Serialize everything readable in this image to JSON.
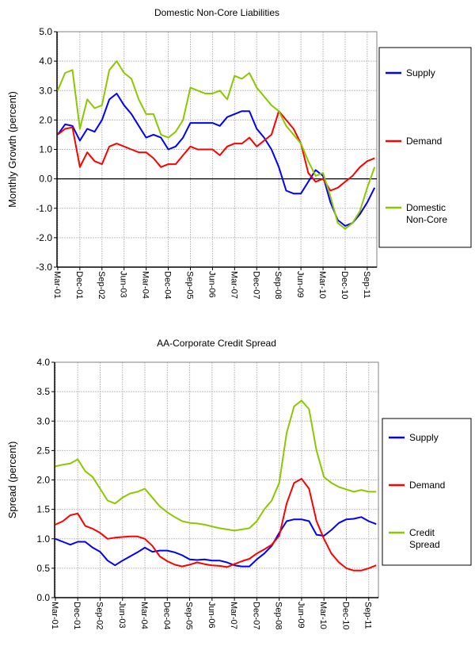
{
  "chart_data": [
    {
      "type": "line",
      "title": "Domestic Non-Core Liabilities",
      "xlabel": "",
      "ylabel": "Monthly Growth (percent)",
      "ylim": [
        -3.0,
        5.0
      ],
      "yticks": [
        "5.0",
        "4.0",
        "3.0",
        "2.0",
        "1.0",
        "0.0",
        "-1.0",
        "-2.0",
        "-3.0"
      ],
      "xticks": [
        "Mar-01",
        "Dec-01",
        "Sep-02",
        "Jun-03",
        "Mar-04",
        "Dec-04",
        "Sep-05",
        "Jun-06",
        "Mar-07",
        "Dec-07",
        "Sep-08",
        "Jun-09",
        "Mar-10",
        "Dec-10",
        "Sep-11"
      ],
      "grid": true,
      "legend": "right",
      "x": [
        "Mar-01",
        "Jun-01",
        "Sep-01",
        "Dec-01",
        "Mar-02",
        "Jun-02",
        "Sep-02",
        "Dec-02",
        "Mar-03",
        "Jun-03",
        "Sep-03",
        "Dec-03",
        "Mar-04",
        "Jun-04",
        "Sep-04",
        "Dec-04",
        "Mar-05",
        "Jun-05",
        "Sep-05",
        "Dec-05",
        "Mar-06",
        "Jun-06",
        "Sep-06",
        "Dec-06",
        "Mar-07",
        "Jun-07",
        "Sep-07",
        "Dec-07",
        "Mar-08",
        "Jun-08",
        "Sep-08",
        "Dec-08",
        "Mar-09",
        "Jun-09",
        "Sep-09",
        "Dec-09",
        "Mar-10",
        "Jun-10",
        "Sep-10",
        "Dec-10",
        "Mar-11",
        "Jun-11",
        "Sep-11",
        "Dec-11"
      ],
      "series": [
        {
          "name": "Supply",
          "color": "#0000ff",
          "values": [
            1.5,
            1.85,
            1.8,
            1.3,
            1.7,
            1.6,
            2.0,
            2.7,
            2.9,
            2.5,
            2.2,
            1.8,
            1.4,
            1.5,
            1.4,
            1.0,
            1.1,
            1.4,
            1.9,
            1.9,
            1.9,
            1.9,
            1.8,
            2.1,
            2.2,
            2.3,
            2.3,
            1.7,
            1.4,
            1.0,
            0.4,
            -0.4,
            -0.5,
            -0.5,
            -0.1,
            0.3,
            0.1,
            -0.8,
            -1.4,
            -1.6,
            -1.5,
            -1.2,
            -0.8,
            -0.3
          ]
        },
        {
          "name": "Demand",
          "color": "#ff0000",
          "values": [
            1.5,
            1.7,
            1.75,
            0.4,
            0.9,
            0.6,
            0.5,
            1.1,
            1.2,
            1.1,
            1.0,
            0.9,
            0.9,
            0.7,
            0.4,
            0.5,
            0.5,
            0.8,
            1.1,
            1.0,
            1.0,
            1.0,
            0.8,
            1.1,
            1.2,
            1.2,
            1.4,
            1.1,
            1.3,
            1.5,
            2.3,
            2.0,
            1.7,
            1.2,
            0.2,
            -0.1,
            0.0,
            -0.4,
            -0.3,
            -0.1,
            0.1,
            0.4,
            0.6,
            0.7
          ]
        },
        {
          "name": "Domestic Non-Core",
          "color": "#8cc800",
          "values": [
            3.0,
            3.6,
            3.7,
            1.7,
            2.7,
            2.4,
            2.5,
            3.7,
            4.0,
            3.6,
            3.4,
            2.7,
            2.2,
            2.2,
            1.5,
            1.4,
            1.6,
            2.0,
            3.1,
            3.0,
            2.9,
            2.9,
            3.0,
            2.7,
            3.5,
            3.4,
            3.6,
            3.1,
            2.8,
            2.5,
            2.3,
            1.8,
            1.5,
            1.2,
            0.6,
            0.1,
            0.2,
            -0.6,
            -1.5,
            -1.7,
            -1.5,
            -1.1,
            -0.3,
            0.4
          ]
        }
      ]
    },
    {
      "type": "line",
      "title": "AA-Corporate Credit Spread",
      "xlabel": "",
      "ylabel": "Spread (percent)",
      "ylim": [
        0.0,
        4.0
      ],
      "yticks": [
        "4.0",
        "3.5",
        "3.0",
        "2.5",
        "2.0",
        "1.5",
        "1.0",
        "0.5",
        "0.0"
      ],
      "xticks": [
        "Mar-01",
        "Dec-01",
        "Sep-02",
        "Jun-03",
        "Mar-04",
        "Dec-04",
        "Sep-05",
        "Jun-06",
        "Mar-07",
        "Dec-07",
        "Sep-08",
        "Jun-09",
        "Mar-10",
        "Dec-10",
        "Sep-11"
      ],
      "grid": true,
      "legend": "right",
      "x": [
        "Mar-01",
        "Jun-01",
        "Sep-01",
        "Dec-01",
        "Mar-02",
        "Jun-02",
        "Sep-02",
        "Dec-02",
        "Mar-03",
        "Jun-03",
        "Sep-03",
        "Dec-03",
        "Mar-04",
        "Jun-04",
        "Sep-04",
        "Dec-04",
        "Mar-05",
        "Jun-05",
        "Sep-05",
        "Dec-05",
        "Mar-06",
        "Jun-06",
        "Sep-06",
        "Dec-06",
        "Mar-07",
        "Jun-07",
        "Sep-07",
        "Dec-07",
        "Mar-08",
        "Jun-08",
        "Sep-08",
        "Dec-08",
        "Mar-09",
        "Jun-09",
        "Sep-09",
        "Dec-09",
        "Mar-10",
        "Jun-10",
        "Sep-10",
        "Dec-10",
        "Mar-11",
        "Jun-11",
        "Sep-11",
        "Dec-11"
      ],
      "series": [
        {
          "name": "Supply",
          "color": "#0000ff",
          "values": [
            1.0,
            0.95,
            0.9,
            0.95,
            0.95,
            0.85,
            0.78,
            0.63,
            0.55,
            0.63,
            0.7,
            0.77,
            0.85,
            0.78,
            0.8,
            0.8,
            0.77,
            0.72,
            0.65,
            0.64,
            0.65,
            0.63,
            0.63,
            0.6,
            0.55,
            0.53,
            0.53,
            0.65,
            0.75,
            0.88,
            1.1,
            1.3,
            1.33,
            1.33,
            1.3,
            1.07,
            1.05,
            1.15,
            1.27,
            1.33,
            1.34,
            1.37,
            1.3,
            1.25
          ]
        },
        {
          "name": "Demand",
          "color": "#ff0000",
          "values": [
            1.24,
            1.3,
            1.4,
            1.43,
            1.22,
            1.17,
            1.1,
            1.0,
            1.02,
            1.03,
            1.04,
            1.04,
            1.0,
            0.88,
            0.7,
            0.62,
            0.56,
            0.53,
            0.56,
            0.6,
            0.57,
            0.55,
            0.54,
            0.52,
            0.57,
            0.62,
            0.66,
            0.75,
            0.82,
            0.9,
            1.05,
            1.6,
            1.95,
            2.02,
            1.85,
            1.3,
            1.0,
            0.75,
            0.6,
            0.5,
            0.46,
            0.46,
            0.5,
            0.55
          ]
        },
        {
          "name": "Credit Spread",
          "color": "#8cc800",
          "values": [
            2.23,
            2.26,
            2.28,
            2.35,
            2.15,
            2.05,
            1.85,
            1.65,
            1.6,
            1.7,
            1.77,
            1.8,
            1.85,
            1.7,
            1.55,
            1.45,
            1.37,
            1.3,
            1.27,
            1.26,
            1.24,
            1.21,
            1.18,
            1.16,
            1.14,
            1.16,
            1.18,
            1.3,
            1.5,
            1.65,
            1.95,
            2.8,
            3.25,
            3.35,
            3.2,
            2.5,
            2.05,
            1.95,
            1.88,
            1.84,
            1.8,
            1.83,
            1.8,
            1.8
          ]
        }
      ]
    }
  ]
}
